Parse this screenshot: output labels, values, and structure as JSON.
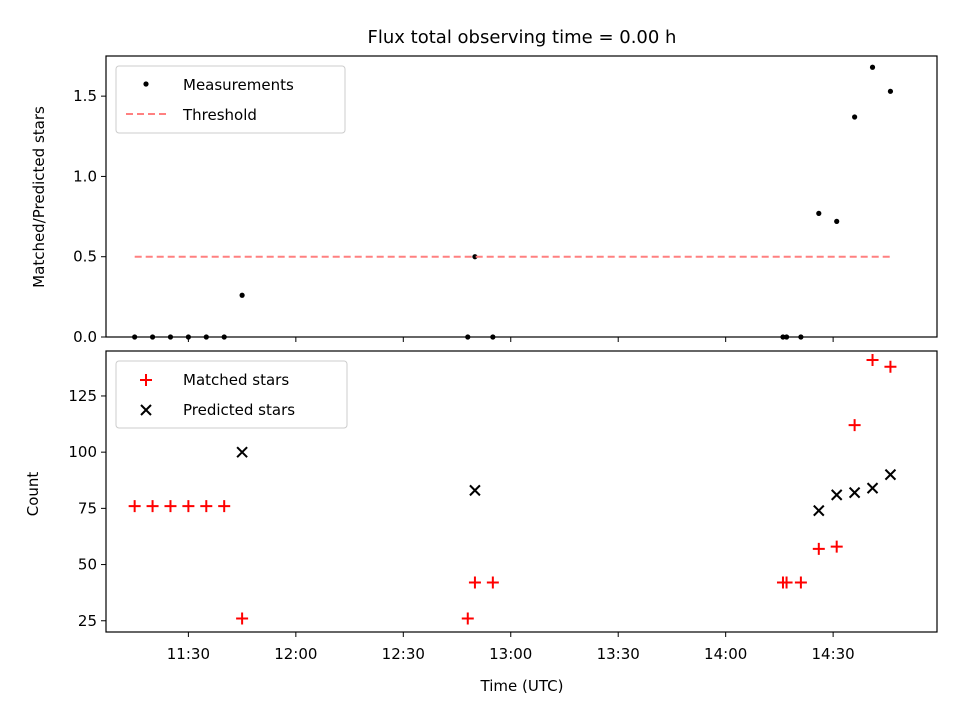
{
  "figure": {
    "title": "Flux total observing time = 0.00 h",
    "xlabel": "Time (UTC)",
    "x_ticks": [
      "11:30",
      "12:00",
      "12:30",
      "13:00",
      "13:30",
      "14:00",
      "14:30"
    ]
  },
  "chart_data": [
    {
      "type": "scatter",
      "ylabel": "Matched/Predicted stars",
      "xlim": [
        "11:07",
        "14:59"
      ],
      "ylim": [
        0,
        1.75
      ],
      "y_ticks": [
        "0.0",
        "0.5",
        "1.0",
        "1.5"
      ],
      "legend_position": "upper-left",
      "series": [
        {
          "name": "Measurements",
          "kind": "points",
          "color": "#000000",
          "x": [
            "11:15",
            "11:20",
            "11:25",
            "11:30",
            "11:35",
            "11:40",
            "11:45",
            "12:48",
            "12:50",
            "12:55",
            "14:16",
            "14:17",
            "14:21",
            "14:26",
            "14:31",
            "14:36",
            "14:41",
            "14:46"
          ],
          "y": [
            0,
            0,
            0,
            0,
            0,
            0,
            0.26,
            0,
            0.5,
            0,
            0,
            0,
            0,
            0.77,
            0.72,
            1.37,
            1.68,
            1.53
          ]
        },
        {
          "name": "Threshold",
          "kind": "dashed-line",
          "color": "#ff8080",
          "x": [
            "11:15",
            "14:46"
          ],
          "y": [
            0.5,
            0.5
          ]
        }
      ]
    },
    {
      "type": "scatter",
      "ylabel": "Count",
      "xlim": [
        "11:07",
        "14:59"
      ],
      "ylim": [
        20,
        145
      ],
      "y_ticks": [
        "25",
        "50",
        "75",
        "100",
        "125"
      ],
      "legend_position": "upper-left",
      "series": [
        {
          "name": "Matched stars",
          "marker": "plus",
          "color": "#ff0000",
          "x": [
            "11:15",
            "11:20",
            "11:25",
            "11:30",
            "11:35",
            "11:40",
            "11:45",
            "12:48",
            "12:50",
            "12:55",
            "14:16",
            "14:17",
            "14:21",
            "14:26",
            "14:31",
            "14:36",
            "14:41",
            "14:46"
          ],
          "y": [
            76,
            76,
            76,
            76,
            76,
            76,
            26,
            26,
            42,
            42,
            42,
            42,
            42,
            57,
            58,
            112,
            141,
            138
          ]
        },
        {
          "name": "Predicted stars",
          "marker": "x",
          "color": "#000000",
          "x": [
            "11:45",
            "12:50",
            "14:26",
            "14:31",
            "14:36",
            "14:41",
            "14:46"
          ],
          "y": [
            100,
            83,
            74,
            81,
            82,
            84,
            90
          ]
        }
      ]
    }
  ]
}
